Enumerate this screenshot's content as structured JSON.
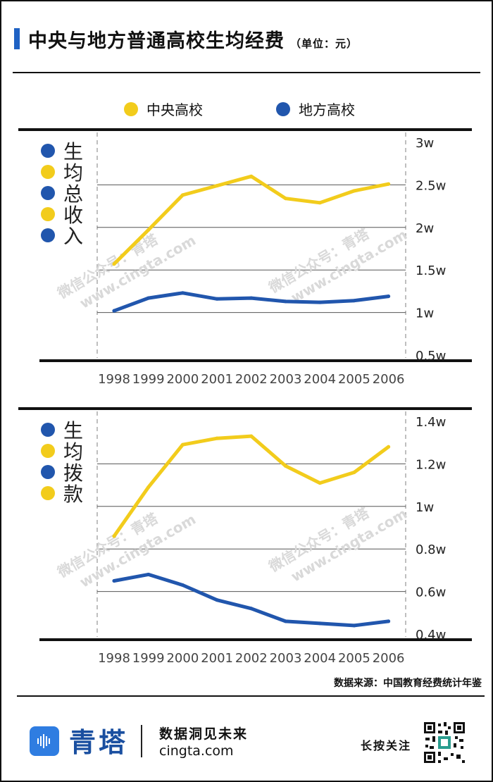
{
  "header": {
    "title": "中央与地方普通高校生均经费",
    "unit": "（单位：元）"
  },
  "colors": {
    "central": "#f2cc1c",
    "local": "#2156ad",
    "accent": "#1f62c4",
    "watermark": "#d9d9d9"
  },
  "legend": {
    "central": "中央高校",
    "local": "地方高校"
  },
  "watermark": {
    "line1": "微信公众号：青塔",
    "line2": "www.cingta.com"
  },
  "chart_data": [
    {
      "type": "line",
      "title": "生均总收入",
      "categories": [
        "1998",
        "1999",
        "2000",
        "2001",
        "2002",
        "2003",
        "2004",
        "2005",
        "2006"
      ],
      "y_tick_labels": [
        "0.5w",
        "1w",
        "1.5w",
        "2w",
        "2.5w",
        "3w"
      ],
      "y_ticks": [
        5000,
        10000,
        15000,
        20000,
        25000,
        30000
      ],
      "ylim": [
        5000,
        30000
      ],
      "grid": true,
      "series": [
        {
          "name": "中央高校",
          "values": [
            15700,
            19700,
            23800,
            24900,
            26000,
            23400,
            22900,
            24300,
            25100
          ]
        },
        {
          "name": "地方高校",
          "values": [
            10200,
            11700,
            12300,
            11600,
            11700,
            11300,
            11200,
            11400,
            11900
          ]
        }
      ]
    },
    {
      "type": "line",
      "title": "生均拨款",
      "categories": [
        "1998",
        "1999",
        "2000",
        "2001",
        "2002",
        "2003",
        "2004",
        "2005",
        "2006"
      ],
      "y_tick_labels": [
        "0.4w",
        "0.6w",
        "0.8w",
        "1w",
        "1.2w",
        "1.4w"
      ],
      "y_ticks": [
        4000,
        6000,
        8000,
        10000,
        12000,
        14000
      ],
      "ylim": [
        4000,
        14000
      ],
      "grid": true,
      "series": [
        {
          "name": "中央高校",
          "values": [
            8600,
            10900,
            12900,
            13200,
            13300,
            11900,
            11100,
            11600,
            12800
          ]
        },
        {
          "name": "地方高校",
          "values": [
            6500,
            6800,
            6300,
            5600,
            5200,
            4600,
            4500,
            4400,
            4600
          ]
        }
      ]
    }
  ],
  "source": "数据来源：中国教育经费统计年鉴",
  "footer": {
    "brand": "青塔",
    "slogan": "数据洞见未来",
    "site": "cingta.com",
    "follow": "长按关注",
    "logo_icon": "sound-wave-icon",
    "qr_icon": "qr-code-icon"
  }
}
